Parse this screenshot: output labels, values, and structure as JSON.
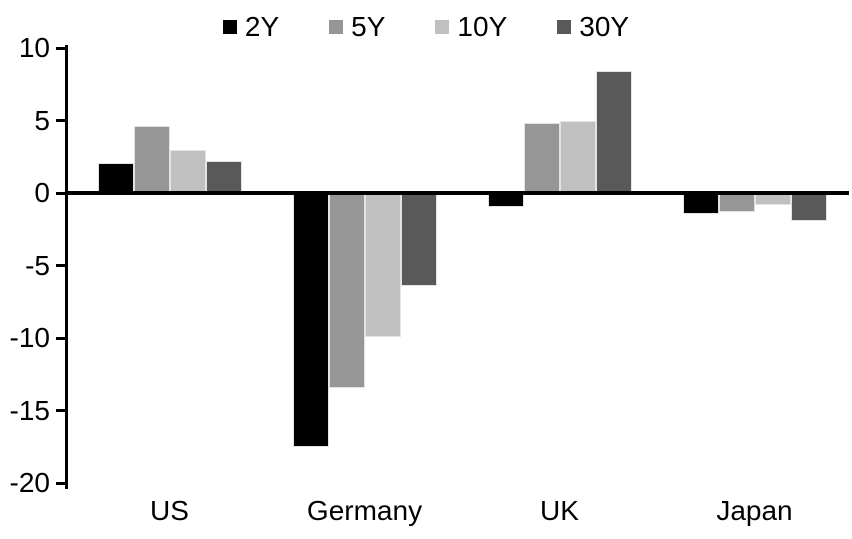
{
  "chart_data": {
    "type": "bar",
    "title": "",
    "categories": [
      "US",
      "Germany",
      "UK",
      "Japan"
    ],
    "series": [
      {
        "name": "2Y",
        "color": "#000000",
        "values": [
          2.1,
          -17.4,
          -0.8,
          -1.3
        ]
      },
      {
        "name": "5Y",
        "color": "#969696",
        "values": [
          4.6,
          -13.3,
          4.8,
          -1.2
        ]
      },
      {
        "name": "10Y",
        "color": "#c0c0c0",
        "values": [
          3.0,
          -9.8,
          5.0,
          -0.7
        ]
      },
      {
        "name": "30Y",
        "color": "#595959",
        "values": [
          2.2,
          -6.3,
          8.4,
          -1.8
        ]
      }
    ],
    "xlabel": "",
    "ylabel": "",
    "ylim": [
      -20,
      10
    ],
    "yticks": [
      10,
      5,
      0,
      -5,
      -10,
      -15,
      -20
    ],
    "grid": false,
    "legend_position": "top-center",
    "axis_color": "#000000",
    "background_color": "#ffffff"
  }
}
